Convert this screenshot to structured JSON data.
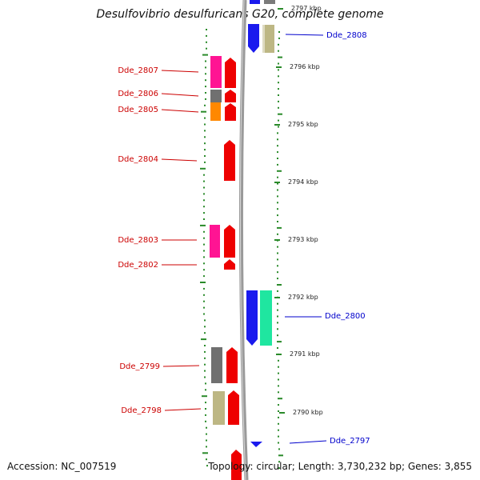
{
  "title": "Desulfovibrio desulfuricans G20, complete genome",
  "accession": "Accession: NC_007519",
  "topology": "Topology: circular; Length: 3,730,232 bp; Genes: 3,855",
  "colors": {
    "minus_label": "#cc0000",
    "plus_label": "#0000cc",
    "tick": "#2a8a2a",
    "backbone": "#808080"
  },
  "kbp_ticks": [
    {
      "label": "2797 kbp",
      "faded": true
    },
    {
      "label": "2796 kbp"
    },
    {
      "label": "2795 kbp"
    },
    {
      "label": "2794 kbp"
    },
    {
      "label": "2793 kbp"
    },
    {
      "label": "2792 kbp"
    },
    {
      "label": "2791 kbp"
    },
    {
      "label": "2790 kbp"
    }
  ],
  "genes": [
    {
      "label": "Dde_2808",
      "strand": "plus"
    },
    {
      "label": "Dde_2807",
      "strand": "minus"
    },
    {
      "label": "Dde_2806",
      "strand": "minus"
    },
    {
      "label": "Dde_2805",
      "strand": "minus"
    },
    {
      "label": "Dde_2804",
      "strand": "minus"
    },
    {
      "label": "Dde_2803",
      "strand": "minus"
    },
    {
      "label": "Dde_2802",
      "strand": "minus"
    },
    {
      "label": "Dde_2800",
      "strand": "plus"
    },
    {
      "label": "Dde_2799",
      "strand": "minus"
    },
    {
      "label": "Dde_2798",
      "strand": "minus"
    },
    {
      "label": "Dde_2797",
      "strand": "plus"
    }
  ]
}
